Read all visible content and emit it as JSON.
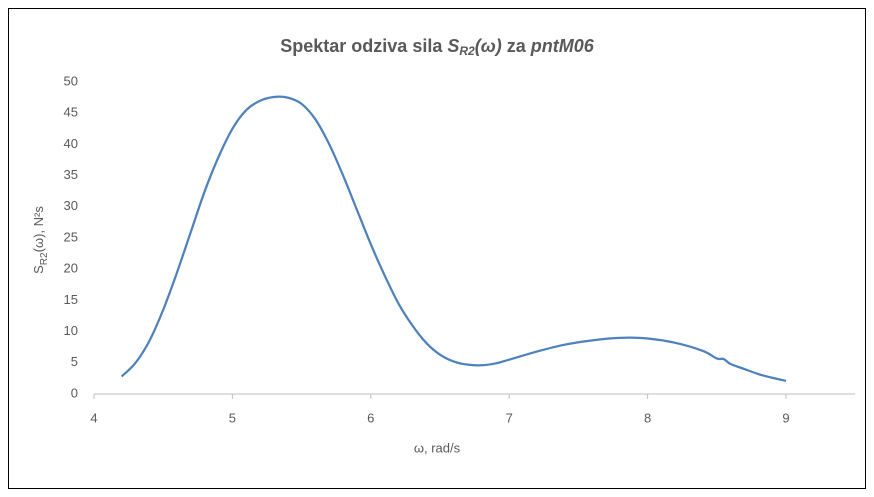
{
  "chart_data": {
    "type": "line",
    "title": [
      "Spektar odziva sila ",
      "S",
      "R2",
      "(ω)",
      " za ",
      "pntM06"
    ],
    "x_label": "ω, rad/s",
    "y_label": [
      "S",
      "R2",
      "(ω), N²s"
    ],
    "x": [
      4.2,
      4.3,
      4.4,
      4.5,
      4.6,
      4.7,
      4.8,
      4.9,
      5.0,
      5.1,
      5.2,
      5.3,
      5.4,
      5.5,
      5.6,
      5.7,
      5.8,
      5.9,
      6.0,
      6.1,
      6.2,
      6.3,
      6.4,
      6.5,
      6.6,
      6.7,
      6.8,
      6.9,
      7.0,
      7.2,
      7.4,
      7.6,
      7.8,
      8.0,
      8.2,
      8.4,
      8.5,
      8.55,
      8.6,
      8.7,
      8.8,
      8.9,
      9.0
    ],
    "series": [
      {
        "color": "#4f81bd",
        "values": [
          2.8,
          5,
          8.5,
          13.5,
          19.5,
          26,
          32.5,
          38,
          42.5,
          45.5,
          47,
          47.6,
          47.5,
          46.5,
          44,
          40,
          35,
          29.5,
          24,
          19,
          14.5,
          11,
          8.2,
          6.3,
          5.2,
          4.7,
          4.6,
          4.9,
          5.5,
          6.8,
          7.9,
          8.6,
          9.0,
          8.9,
          8.2,
          6.9,
          5.7,
          5.6,
          4.8,
          4,
          3.2,
          2.6,
          2.1
        ]
      }
    ],
    "xlim": [
      4,
      9.5
    ],
    "xticks": [
      4,
      5,
      6,
      7,
      8,
      9
    ],
    "ylim": [
      0,
      50
    ],
    "yticks": [
      0,
      5,
      10,
      15,
      20,
      25,
      30,
      35,
      40,
      45,
      50
    ],
    "grid": false
  }
}
